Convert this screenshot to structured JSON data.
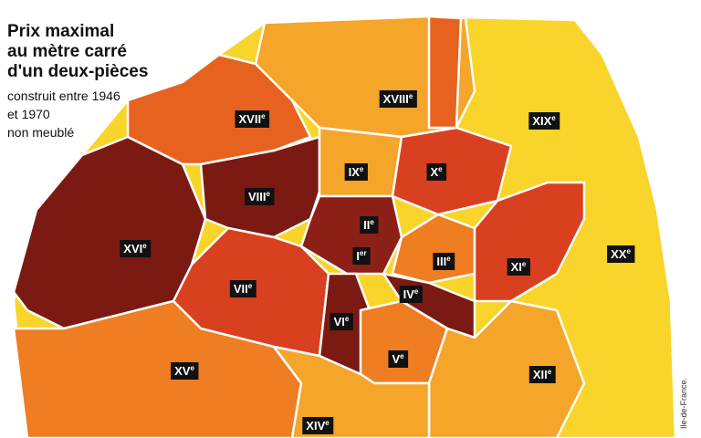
{
  "header": {
    "title": [
      "Prix maximal",
      "au mètre carré",
      "d'un deux-pièces"
    ],
    "subtitle": [
      "construit entre 1946",
      "et 1970",
      "non meublé"
    ]
  },
  "credit": "Ile-de-France.",
  "arrondissements": [
    {
      "roman": "XVII",
      "suffix": "e"
    },
    {
      "roman": "XVIII",
      "suffix": "e"
    },
    {
      "roman": "XIX",
      "suffix": "e"
    },
    {
      "roman": "IX",
      "suffix": "e"
    },
    {
      "roman": "X",
      "suffix": "e"
    },
    {
      "roman": "VIII",
      "suffix": "e"
    },
    {
      "roman": "II",
      "suffix": "e"
    },
    {
      "roman": "XVI",
      "suffix": "e"
    },
    {
      "roman": "I",
      "suffix": "er"
    },
    {
      "roman": "III",
      "suffix": "e"
    },
    {
      "roman": "XI",
      "suffix": "e"
    },
    {
      "roman": "XX",
      "suffix": "e"
    },
    {
      "roman": "VII",
      "suffix": "e"
    },
    {
      "roman": "IV",
      "suffix": "e"
    },
    {
      "roman": "VI",
      "suffix": "e"
    },
    {
      "roman": "V",
      "suffix": "e"
    },
    {
      "roman": "XV",
      "suffix": "e"
    },
    {
      "roman": "XII",
      "suffix": "e"
    },
    {
      "roman": "XIV",
      "suffix": "e"
    }
  ]
}
